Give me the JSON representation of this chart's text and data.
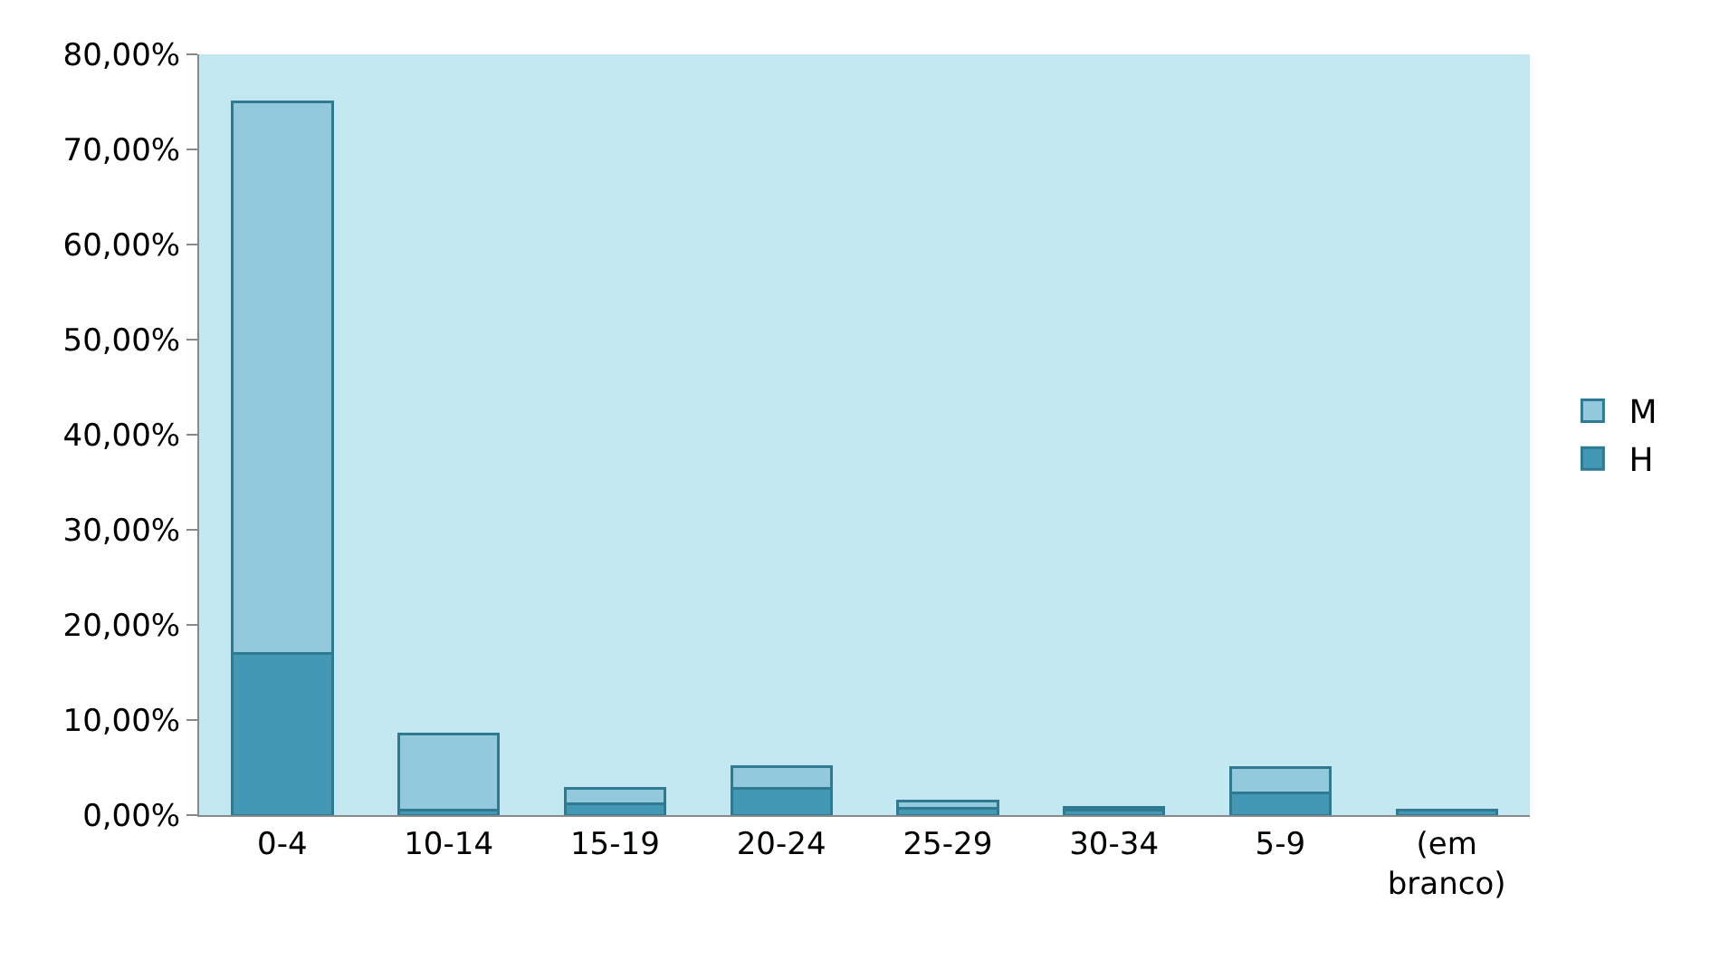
{
  "chart_data": {
    "type": "bar",
    "stacked": true,
    "categories": [
      "0-4",
      "10-14",
      "15-19",
      "20-24",
      "25-29",
      "30-34",
      "5-9",
      "(em branco)"
    ],
    "series": [
      {
        "name": "H",
        "color": "#4298b5",
        "values": [
          17,
          0.5,
          1.2,
          2.8,
          0.7,
          0.5,
          2.3,
          0.5
        ]
      },
      {
        "name": "M",
        "color": "#93c9dc",
        "values": [
          58,
          8,
          1.6,
          2.3,
          0.8,
          0.3,
          2.7,
          null
        ]
      }
    ],
    "ylim": [
      0,
      80
    ],
    "yticks": [
      {
        "value": 0,
        "label": "0,00%"
      },
      {
        "value": 10,
        "label": "10,00%"
      },
      {
        "value": 20,
        "label": "20,00%"
      },
      {
        "value": 30,
        "label": "30,00%"
      },
      {
        "value": 40,
        "label": "40,00%"
      },
      {
        "value": 50,
        "label": "50,00%"
      },
      {
        "value": 60,
        "label": "60,00%"
      },
      {
        "value": 70,
        "label": "70,00%"
      },
      {
        "value": 80,
        "label": "80,00%"
      }
    ],
    "grid": false,
    "legend": "right"
  }
}
